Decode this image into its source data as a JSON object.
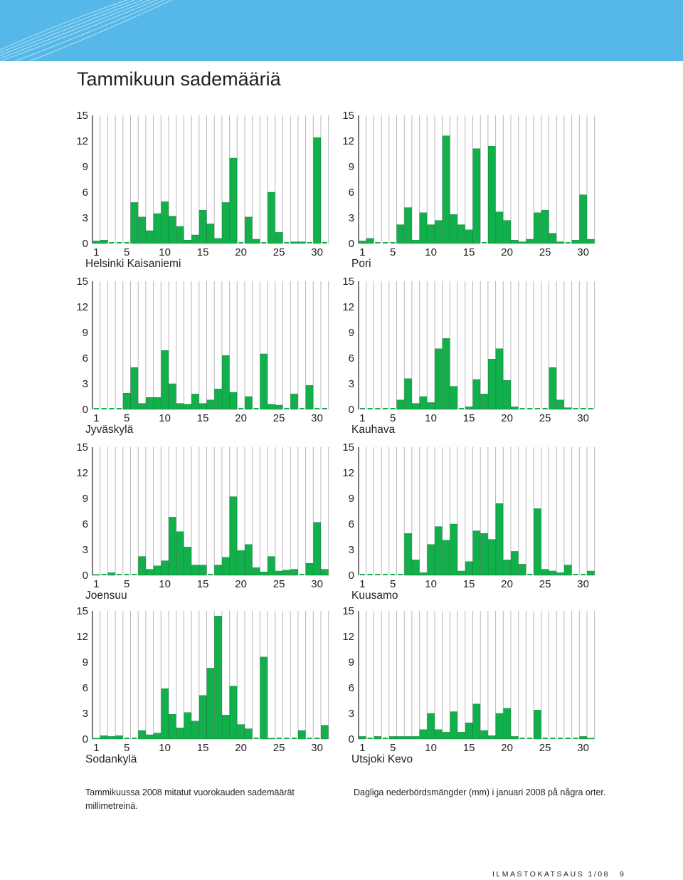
{
  "page": {
    "title": "Tammikuun sademääriä",
    "caption_fi": "Tammikuussa 2008 mitatut vuorokauden sademäärät millimetreinä.",
    "caption_sv": "Dagliga nederbördsmängder (mm) i januari 2008 på några orter.",
    "footer_publication": "ILMASTOKATSAUS 1/08",
    "footer_page": "9"
  },
  "colors": {
    "bar": "#12b04b",
    "bar_stroke": "#0a7a33",
    "grid": "#b8b8b8",
    "banner": "#55b8e8",
    "zero_dash": "#12b04b"
  },
  "chart_data": [
    {
      "type": "bar",
      "station": "Helsinki Kaisaniemi",
      "yticks": [
        "0",
        "3",
        "6",
        "9",
        "12",
        "15"
      ],
      "xticks": [
        "1",
        "5",
        "10",
        "15",
        "20",
        "25",
        "30"
      ],
      "ylim": [
        0,
        15
      ],
      "days": 31,
      "values": [
        0.3,
        0.4,
        0,
        0,
        0,
        4.8,
        3.1,
        1.5,
        3.5,
        4.9,
        3.2,
        2.0,
        0.4,
        1.0,
        3.9,
        2.3,
        0.6,
        4.8,
        10.0,
        0,
        3.1,
        0.5,
        0,
        6.0,
        1.3,
        0,
        0.2,
        0.2,
        0,
        12.4,
        0
      ]
    },
    {
      "type": "bar",
      "station": "Pori",
      "yticks": [
        "0",
        "3",
        "6",
        "9",
        "12",
        "15"
      ],
      "xticks": [
        "1",
        "5",
        "10",
        "15",
        "20",
        "25",
        "30"
      ],
      "ylim": [
        0,
        15
      ],
      "days": 31,
      "values": [
        0.3,
        0.6,
        0,
        0,
        0,
        2.2,
        4.2,
        0.4,
        3.6,
        2.2,
        2.7,
        12.6,
        3.4,
        2.2,
        1.6,
        11.1,
        0,
        11.4,
        3.7,
        2.7,
        0.4,
        0.2,
        0.5,
        3.6,
        3.9,
        1.2,
        0.2,
        0,
        0.4,
        5.7,
        0.5
      ]
    },
    {
      "type": "bar",
      "station": "Jyväskylä",
      "yticks": [
        "0",
        "3",
        "6",
        "9",
        "12",
        "15"
      ],
      "xticks": [
        "1",
        "5",
        "10",
        "15",
        "20",
        "25",
        "30"
      ],
      "ylim": [
        0,
        15
      ],
      "days": 31,
      "values": [
        0,
        0,
        0,
        0,
        1.9,
        4.9,
        0.7,
        1.4,
        1.4,
        6.9,
        3.0,
        0.7,
        0.6,
        1.8,
        0.7,
        1.1,
        2.4,
        6.3,
        2.0,
        0,
        1.5,
        0,
        6.5,
        0.6,
        0.5,
        0,
        1.8,
        0,
        2.8,
        0,
        0
      ]
    },
    {
      "type": "bar",
      "station": "Kauhava",
      "yticks": [
        "0",
        "3",
        "6",
        "9",
        "12",
        "15"
      ],
      "xticks": [
        "1",
        "5",
        "10",
        "15",
        "20",
        "25",
        "30"
      ],
      "ylim": [
        0,
        15
      ],
      "days": 31,
      "values": [
        0,
        0,
        0,
        0,
        0,
        1.1,
        3.6,
        0.7,
        1.5,
        0.8,
        7.1,
        8.3,
        2.7,
        0,
        0.3,
        3.5,
        1.8,
        5.9,
        7.1,
        3.4,
        0.3,
        0,
        0,
        0,
        0,
        4.9,
        1.1,
        0.2,
        0,
        0,
        0
      ]
    },
    {
      "type": "bar",
      "station": "Joensuu",
      "yticks": [
        "0",
        "3",
        "6",
        "9",
        "12",
        "15"
      ],
      "xticks": [
        "1",
        "5",
        "10",
        "15",
        "20",
        "25",
        "30"
      ],
      "ylim": [
        0,
        15
      ],
      "days": 31,
      "values": [
        0.1,
        0,
        0.3,
        0,
        0,
        0,
        2.2,
        0.7,
        1.1,
        1.7,
        6.8,
        5.1,
        3.3,
        1.2,
        1.2,
        0,
        1.2,
        2.1,
        9.2,
        2.9,
        3.6,
        0.9,
        0.4,
        2.2,
        0.5,
        0.6,
        0.7,
        0,
        1.4,
        6.2,
        0.7
      ]
    },
    {
      "type": "bar",
      "station": "Kuusamo",
      "yticks": [
        "0",
        "3",
        "6",
        "9",
        "12",
        "15"
      ],
      "xticks": [
        "1",
        "5",
        "10",
        "15",
        "20",
        "25",
        "30"
      ],
      "ylim": [
        0,
        15
      ],
      "days": 31,
      "values": [
        0,
        0,
        0,
        0,
        0,
        0,
        4.9,
        1.8,
        0.3,
        3.6,
        5.7,
        4.1,
        6.0,
        0.5,
        1.6,
        5.2,
        4.9,
        4.2,
        8.4,
        1.8,
        2.8,
        1.3,
        0,
        7.8,
        0.7,
        0.5,
        0.3,
        1.2,
        0,
        0,
        0.5
      ]
    },
    {
      "type": "bar",
      "station": "Sodankylä",
      "yticks": [
        "0",
        "3",
        "6",
        "9",
        "12",
        "15"
      ],
      "xticks": [
        "1",
        "5",
        "10",
        "15",
        "20",
        "25",
        "30"
      ],
      "ylim": [
        0,
        15
      ],
      "days": 31,
      "values": [
        0.1,
        0.4,
        0.3,
        0.4,
        0,
        0,
        1.0,
        0.5,
        0.7,
        5.9,
        2.9,
        1.3,
        3.1,
        2.1,
        5.1,
        8.3,
        14.4,
        2.8,
        6.2,
        1.7,
        1.2,
        0,
        9.6,
        0.1,
        0,
        0,
        0,
        1.0,
        0,
        0,
        1.6
      ]
    },
    {
      "type": "bar",
      "station": "Utsjoki Kevo",
      "yticks": [
        "0",
        "3",
        "6",
        "9",
        "12",
        "15"
      ],
      "xticks": [
        "1",
        "5",
        "10",
        "15",
        "20",
        "25",
        "30"
      ],
      "ylim": [
        0,
        15
      ],
      "days": 31,
      "values": [
        0.3,
        0,
        0.3,
        0,
        0.3,
        0.3,
        0.3,
        0.3,
        1.1,
        3.0,
        1.1,
        0.8,
        3.2,
        0.8,
        1.9,
        4.1,
        1.0,
        0.4,
        3.0,
        3.6,
        0.3,
        0,
        0,
        3.4,
        0,
        0,
        0,
        0,
        0,
        0.3,
        0.1
      ]
    }
  ]
}
